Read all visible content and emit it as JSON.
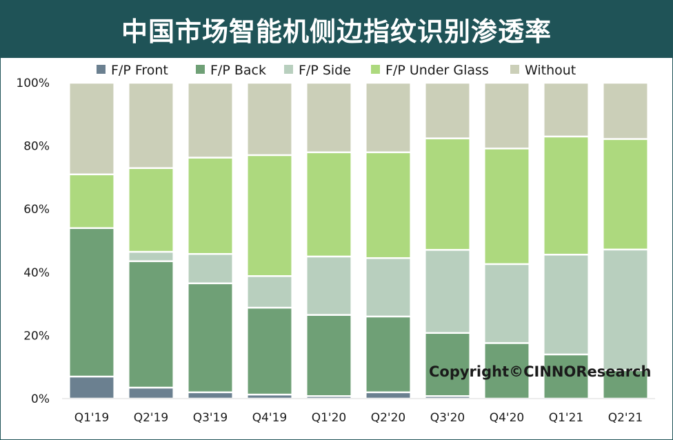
{
  "chart_data": {
    "type": "bar",
    "stacked": true,
    "title": "中国市场智能机侧边指纹识别渗透率",
    "categories": [
      "Q1'19",
      "Q2'19",
      "Q3'19",
      "Q4'19",
      "Q1'20",
      "Q2'20",
      "Q3'20",
      "Q4'20",
      "Q1'21",
      "Q2'21"
    ],
    "series": [
      {
        "name": "F/P Front",
        "color": "#6b8090",
        "values": [
          7,
          3.5,
          2,
          1.3,
          0.8,
          2,
          0.8,
          0,
          0,
          0
        ]
      },
      {
        "name": "F/P Back",
        "color": "#6fa076",
        "values": [
          47,
          40,
          34.5,
          27.5,
          25.7,
          24,
          20,
          17.6,
          14,
          9
        ]
      },
      {
        "name": "F/P Side",
        "color": "#b8cfbe",
        "values": [
          0,
          3,
          9.3,
          10,
          18.5,
          18.5,
          26.3,
          25,
          31.6,
          38.2
        ]
      },
      {
        "name": "F/P Under Glass",
        "color": "#add97e",
        "values": [
          17,
          26.5,
          30.5,
          38.3,
          33,
          33.5,
          35.3,
          36.6,
          37.4,
          35
        ]
      },
      {
        "name": "Without",
        "color": "#cbcfb8",
        "values": [
          29,
          27,
          23.7,
          22.9,
          22,
          22,
          17.6,
          20.8,
          17,
          17.8
        ]
      }
    ],
    "y_ticks": [
      "0%",
      "20%",
      "40%",
      "60%",
      "80%",
      "100%"
    ],
    "ylim": [
      0,
      100
    ],
    "legend_position": "top",
    "grid": false,
    "annotation": "Copyright©CINNOResearch"
  }
}
